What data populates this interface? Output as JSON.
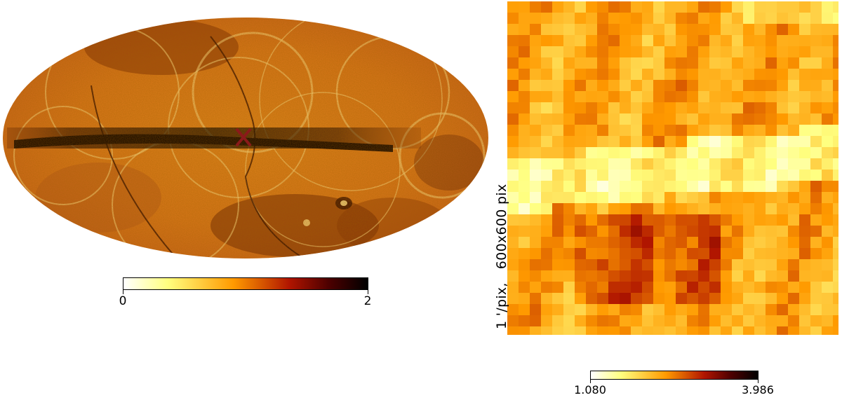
{
  "colors": {
    "colormap_afmhot_reversed": [
      "#ffffff",
      "#ffff80",
      "#ff9a00",
      "#b01500",
      "#4d0000",
      "#000000"
    ],
    "marker": "#8b1a1a"
  },
  "left_panel": {
    "projection": "mollweide",
    "marker_symbol": "x",
    "colorbar": {
      "min_label": "0",
      "max_label": "2"
    }
  },
  "right_panel": {
    "side_label": "1 '/pix,   600x600 pix",
    "colorbar": {
      "min_label": "1.080",
      "max_label": "3.986"
    }
  }
}
